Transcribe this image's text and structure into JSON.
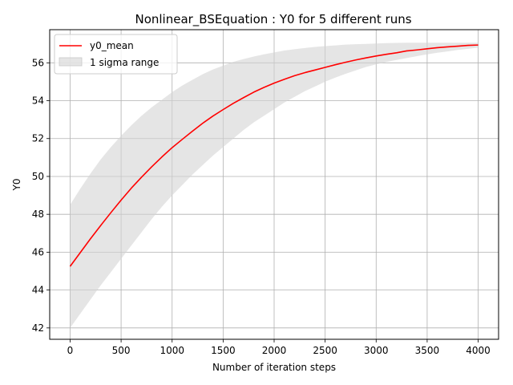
{
  "chart_data": {
    "type": "line",
    "title": "Nonlinear_BSEquation : Y0 for 5 different runs",
    "xlabel": "Number of iteration steps",
    "ylabel": "Y0",
    "xlim": [
      -200,
      4200
    ],
    "ylim": [
      41.4,
      57.75
    ],
    "xticks": [
      0,
      500,
      1000,
      1500,
      2000,
      2500,
      3000,
      3500,
      4000
    ],
    "yticks": [
      42,
      44,
      46,
      48,
      50,
      52,
      54,
      56
    ],
    "grid": true,
    "legend_position": "top-left",
    "x": [
      0,
      100,
      200,
      300,
      400,
      500,
      600,
      700,
      800,
      900,
      1000,
      1100,
      1200,
      1300,
      1400,
      1500,
      1600,
      1700,
      1800,
      1900,
      2000,
      2100,
      2200,
      2300,
      2400,
      2500,
      2600,
      2700,
      2800,
      2900,
      3000,
      3100,
      3200,
      3300,
      3400,
      3500,
      3600,
      3700,
      3800,
      3900,
      4000
    ],
    "series": [
      {
        "name": "y0_mean",
        "color": "#ff0000",
        "style": "line",
        "values": [
          45.25,
          45.98,
          46.71,
          47.41,
          48.09,
          48.75,
          49.38,
          49.96,
          50.51,
          51.03,
          51.52,
          51.96,
          52.39,
          52.81,
          53.19,
          53.53,
          53.86,
          54.16,
          54.45,
          54.7,
          54.93,
          55.13,
          55.32,
          55.48,
          55.62,
          55.76,
          55.9,
          56.03,
          56.15,
          56.26,
          56.36,
          56.45,
          56.53,
          56.63,
          56.68,
          56.74,
          56.8,
          56.84,
          56.88,
          56.92,
          56.94
        ]
      },
      {
        "name": "1 sigma range",
        "color": "#d3d3d3",
        "style": "band",
        "upper": [
          48.5,
          49.35,
          50.15,
          50.9,
          51.55,
          52.15,
          52.7,
          53.2,
          53.65,
          54.05,
          54.45,
          54.8,
          55.1,
          55.4,
          55.65,
          55.85,
          56.05,
          56.2,
          56.33,
          56.45,
          56.55,
          56.65,
          56.72,
          56.78,
          56.84,
          56.88,
          56.92,
          56.96,
          56.98,
          57.0,
          57.02,
          57.04,
          57.05,
          57.06,
          57.06,
          57.06,
          57.06,
          57.06,
          57.06,
          57.06,
          57.06
        ],
        "lower": [
          42.0,
          42.75,
          43.5,
          44.25,
          44.95,
          45.65,
          46.35,
          47.05,
          47.75,
          48.4,
          49.0,
          49.55,
          50.1,
          50.6,
          51.1,
          51.55,
          52.0,
          52.45,
          52.85,
          53.2,
          53.55,
          53.9,
          54.2,
          54.5,
          54.75,
          55.0,
          55.22,
          55.42,
          55.6,
          55.78,
          55.92,
          56.05,
          56.15,
          56.25,
          56.35,
          56.45,
          56.53,
          56.6,
          56.68,
          56.74,
          56.8
        ]
      }
    ]
  }
}
